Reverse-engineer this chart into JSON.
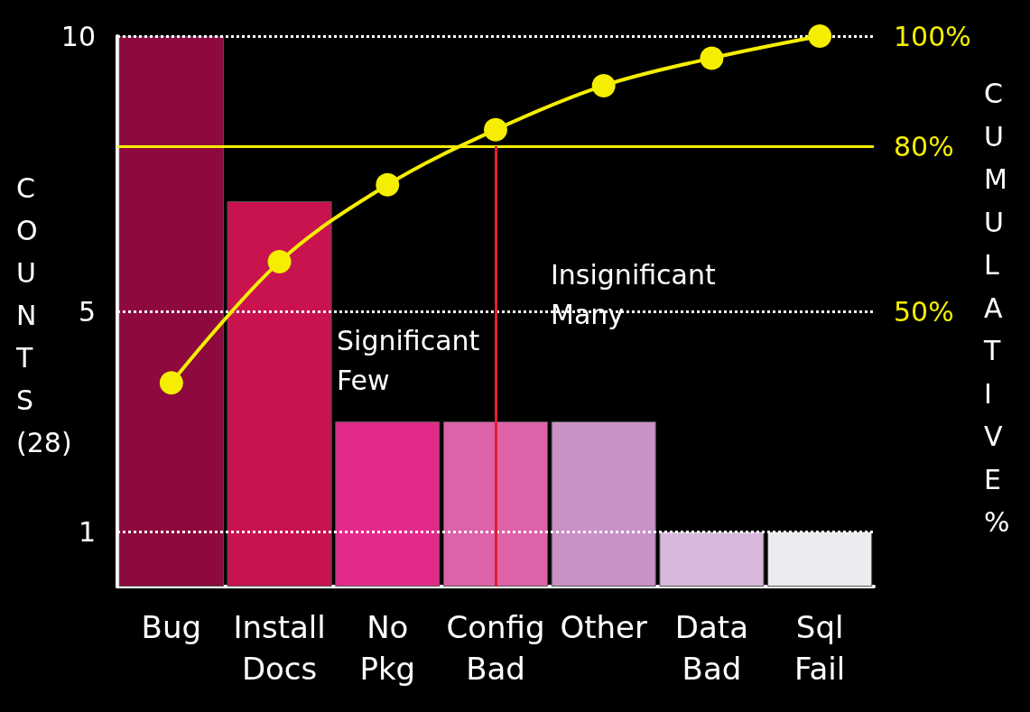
{
  "chart_data": {
    "type": "bar",
    "ylabel": "COUNTS (28)",
    "y2label": "CUMULATIVE %",
    "categories": [
      "Bug",
      "Install\nDocs",
      "No\nPkg",
      "Config\nBad",
      "Other",
      "Data\nBad",
      "Sql\nFail"
    ],
    "series": [
      {
        "values": [
          10,
          7,
          3,
          3,
          3,
          1,
          1
        ],
        "colors": [
          "#8e0a3e",
          "#c8134f",
          "#e32a8a",
          "#dd62a8",
          "#c991c6",
          "#d8b9db",
          "#eeebf0"
        ]
      },
      {
        "type": "line",
        "axis": "y2",
        "values": [
          37,
          59,
          73,
          83,
          91,
          96,
          100
        ],
        "color": "#f5ee00"
      }
    ],
    "marker": "circle",
    "ylim": [
      0,
      10
    ],
    "yticks": [
      1,
      5,
      10
    ],
    "y2lim": [
      0,
      100
    ],
    "y2ticks": [
      {
        "value": 50,
        "label": "50%"
      },
      {
        "value": 80,
        "label": "80%"
      },
      {
        "value": 100,
        "label": "100%"
      }
    ],
    "grid": "y",
    "ref_lines": [
      {
        "axis": "y2",
        "value": 80,
        "color": "#f5ee00",
        "line_style": "solid"
      },
      {
        "axis": "x",
        "value": "Config\nBad",
        "color": "#e0202a",
        "line_style": "solid"
      }
    ],
    "annotations": [
      "Significant\nFew",
      "Insignificant\nMany"
    ]
  }
}
